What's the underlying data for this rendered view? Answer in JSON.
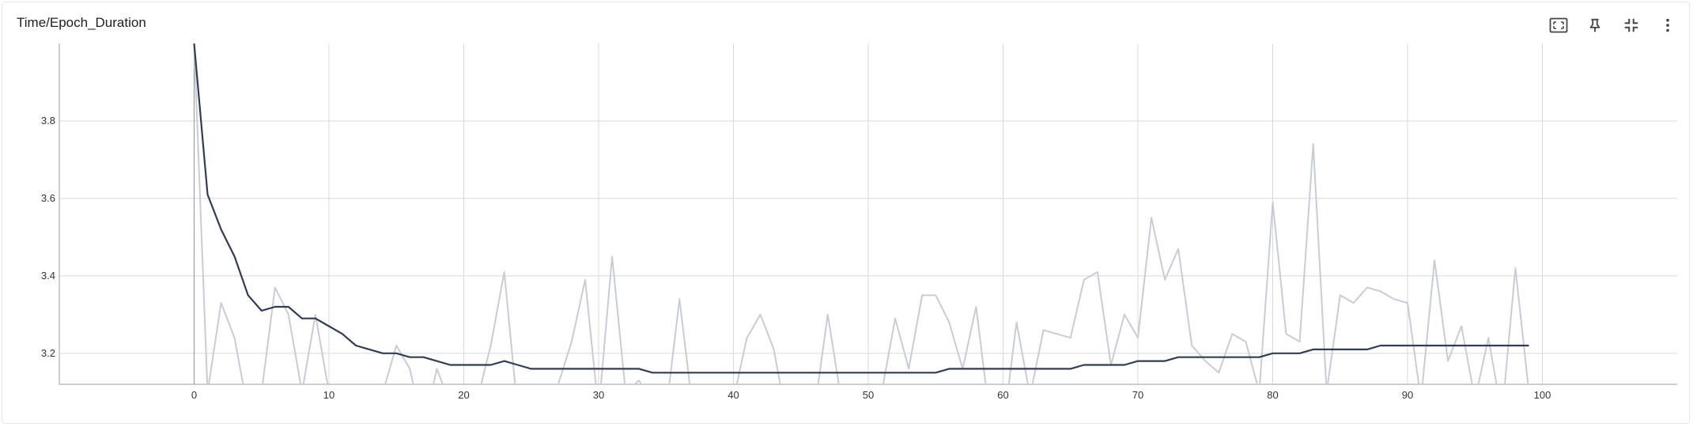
{
  "panel": {
    "title": "Time/Epoch_Duration",
    "icons": [
      "fit-domain-icon",
      "pin-icon",
      "collapse-icon",
      "more-vertical-icon"
    ]
  },
  "colors": {
    "smoothed": "#2f3d55",
    "raw": "#c8ccd6",
    "grid": "#d9d9d9",
    "axis": "#9e9e9e"
  },
  "chart_data": {
    "type": "line",
    "title": "Time/Epoch_Duration",
    "xlabel": "",
    "ylabel": "",
    "xlim": [
      -10,
      110
    ],
    "ylim": [
      3.12,
      4.0
    ],
    "x_ticks": [
      0,
      10,
      20,
      30,
      40,
      50,
      60,
      70,
      80,
      90,
      100
    ],
    "y_ticks": [
      3.2,
      3.4,
      3.6,
      3.8
    ],
    "grid": true,
    "legend": "none",
    "x": [
      0,
      1,
      2,
      3,
      4,
      5,
      6,
      7,
      8,
      9,
      10,
      11,
      12,
      13,
      14,
      15,
      16,
      17,
      18,
      19,
      20,
      21,
      22,
      23,
      24,
      25,
      26,
      27,
      28,
      29,
      30,
      31,
      32,
      33,
      34,
      35,
      36,
      37,
      38,
      39,
      40,
      41,
      42,
      43,
      44,
      45,
      46,
      47,
      48,
      49,
      50,
      51,
      52,
      53,
      54,
      55,
      56,
      57,
      58,
      59,
      60,
      61,
      62,
      63,
      64,
      65,
      66,
      67,
      68,
      69,
      70,
      71,
      72,
      73,
      74,
      75,
      76,
      77,
      78,
      79,
      80,
      81,
      82,
      83,
      84,
      85,
      86,
      87,
      88,
      89,
      90,
      91,
      92,
      93,
      94,
      95,
      96,
      97,
      98,
      99
    ],
    "series": [
      {
        "role": "raw",
        "values": [
          4.0,
          3.1,
          3.33,
          3.24,
          3.05,
          3.1,
          3.37,
          3.3,
          3.1,
          3.3,
          3.1,
          3.0,
          3.02,
          3.05,
          3.1,
          3.22,
          3.16,
          3.0,
          3.16,
          3.07,
          3.05,
          3.08,
          3.22,
          3.41,
          3.05,
          3.03,
          3.06,
          3.12,
          3.23,
          3.39,
          3.05,
          3.45,
          3.1,
          3.13,
          3.07,
          3.05,
          3.34,
          3.05,
          3.03,
          3.05,
          3.08,
          3.24,
          3.3,
          3.21,
          3.02,
          3.0,
          3.05,
          3.3,
          3.08,
          3.06,
          3.05,
          3.1,
          3.29,
          3.16,
          3.35,
          3.35,
          3.28,
          3.16,
          3.32,
          3.04,
          3.0,
          3.28,
          3.09,
          3.26,
          3.25,
          3.24,
          3.39,
          3.41,
          3.17,
          3.3,
          3.24,
          3.55,
          3.39,
          3.47,
          3.22,
          3.18,
          3.15,
          3.25,
          3.23,
          3.1,
          3.59,
          3.25,
          3.23,
          3.74,
          3.1,
          3.35,
          3.33,
          3.37,
          3.36,
          3.34,
          3.33,
          3.08,
          3.44,
          3.18,
          3.27,
          3.08,
          3.24,
          3.04,
          3.42,
          3.1
        ]
      },
      {
        "role": "smoothed",
        "values": [
          4.0,
          3.61,
          3.52,
          3.45,
          3.35,
          3.31,
          3.32,
          3.32,
          3.29,
          3.29,
          3.27,
          3.25,
          3.22,
          3.21,
          3.2,
          3.2,
          3.19,
          3.19,
          3.18,
          3.17,
          3.17,
          3.17,
          3.17,
          3.18,
          3.17,
          3.16,
          3.16,
          3.16,
          3.16,
          3.16,
          3.16,
          3.16,
          3.16,
          3.16,
          3.15,
          3.15,
          3.15,
          3.15,
          3.15,
          3.15,
          3.15,
          3.15,
          3.15,
          3.15,
          3.15,
          3.15,
          3.15,
          3.15,
          3.15,
          3.15,
          3.15,
          3.15,
          3.15,
          3.15,
          3.15,
          3.15,
          3.16,
          3.16,
          3.16,
          3.16,
          3.16,
          3.16,
          3.16,
          3.16,
          3.16,
          3.16,
          3.17,
          3.17,
          3.17,
          3.17,
          3.18,
          3.18,
          3.18,
          3.19,
          3.19,
          3.19,
          3.19,
          3.19,
          3.19,
          3.19,
          3.2,
          3.2,
          3.2,
          3.21,
          3.21,
          3.21,
          3.21,
          3.21,
          3.22,
          3.22,
          3.22,
          3.22,
          3.22,
          3.22,
          3.22,
          3.22,
          3.22,
          3.22,
          3.22,
          3.22
        ]
      }
    ]
  }
}
